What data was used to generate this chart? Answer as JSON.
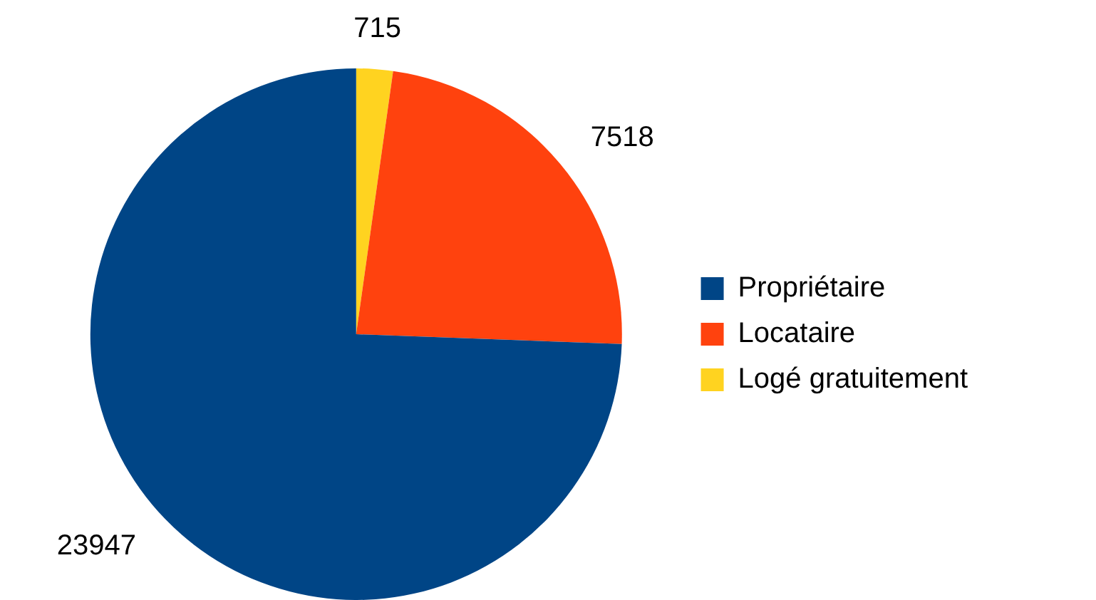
{
  "chart_data": {
    "type": "pie",
    "categories": [
      "Propriétaire",
      "Locataire",
      "Logé gratuitement"
    ],
    "values": [
      23947,
      7518,
      715
    ],
    "colors": [
      "#004586",
      "#ff420e",
      "#ffd320"
    ],
    "data_labels": true,
    "legend": "right"
  }
}
